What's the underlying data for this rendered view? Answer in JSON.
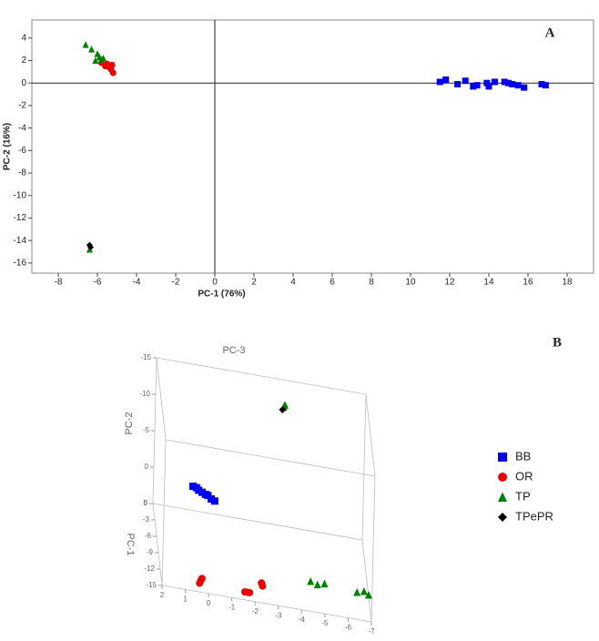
{
  "chart_data": [
    {
      "type": "scatter",
      "panel": "A",
      "x_label": "PC-1 (76%)",
      "y_label": "PC-2 (16%)",
      "xlim": [
        -9.35,
        19.35
      ],
      "ylim": [
        -16.9,
        5.6
      ],
      "xticks": [
        -8,
        -6,
        -4,
        -2,
        0,
        2,
        4,
        6,
        8,
        10,
        12,
        14,
        16,
        18
      ],
      "yticks": [
        -16,
        -14,
        -12,
        -10,
        -8,
        -6,
        -4,
        -2,
        0,
        2,
        4
      ],
      "zero_lines": true,
      "series": [
        {
          "color": "#0000ee",
          "marker": "square",
          "x": [
            11.5,
            11.8,
            12.4,
            12.8,
            13.2,
            13.4,
            13.9,
            14.0,
            14.3,
            14.8,
            15.0,
            15.2,
            15.5,
            15.8,
            16.7,
            16.9
          ],
          "y": [
            0.1,
            0.3,
            -0.1,
            0.2,
            -0.3,
            -0.2,
            0.0,
            -0.3,
            0.1,
            0.1,
            0.0,
            -0.1,
            -0.2,
            -0.4,
            -0.1,
            -0.2
          ]
        },
        {
          "color": "#ee0000",
          "marker": "circle",
          "x": [
            -5.8,
            -5.6,
            -5.5,
            -5.4,
            -5.3,
            -5.2,
            -5.25
          ],
          "y": [
            1.8,
            1.5,
            1.7,
            1.4,
            1.2,
            0.9,
            1.6
          ]
        },
        {
          "color": "#008000",
          "marker": "triangle",
          "x": [
            -6.6,
            -6.3,
            -6.0,
            -5.9,
            -5.8,
            -5.7,
            -6.1,
            -6.4
          ],
          "y": [
            3.4,
            3.0,
            2.6,
            2.3,
            2.1,
            2.2,
            2.0,
            -14.8
          ]
        },
        {
          "color": "#000000",
          "marker": "diamond",
          "x": [
            -6.4,
            -6.35
          ],
          "y": [
            -14.4,
            -14.6
          ]
        }
      ]
    },
    {
      "type": "scatter3d",
      "panel": "B",
      "x_label": "PC-1",
      "y_label": "PC-2",
      "z_label": "PC-3",
      "xlim": [
        0,
        -15
      ],
      "ylim": [
        -15,
        5
      ],
      "zlim": [
        2,
        -7
      ],
      "xticks": [
        0,
        -3,
        -6,
        -9,
        -12,
        -15
      ],
      "yticks": [
        -15,
        -10,
        -5,
        0,
        5
      ],
      "zticks": [
        2,
        1,
        0,
        -1,
        -2,
        -3,
        -4,
        -5,
        -6,
        -7
      ],
      "series": [
        {
          "name": "BB",
          "color": "#0000ee",
          "marker": "square",
          "x": [
            -4.5,
            -4.5,
            -4.5,
            -4.5,
            -4.5,
            -4.5,
            -4.5,
            -4.5
          ],
          "y": [
            -1.6,
            -1.5,
            -1.2,
            -1.0,
            -0.8,
            -0.7,
            -0.3,
            -0.1
          ],
          "z": [
            0.45,
            0.3,
            0.2,
            0.05,
            -0.1,
            -0.2,
            -0.35,
            -0.5
          ]
        },
        {
          "name": "OR",
          "color": "#ee0000",
          "marker": "circle",
          "x": [
            -13.5,
            -13.5,
            -13.5,
            -13.5,
            -13.5,
            -13.5,
            -13.5,
            -13.5
          ],
          "y": [
            4.9,
            4.5,
            4.2,
            5.0,
            5.0,
            5.0,
            3.4,
            3.8
          ],
          "z": [
            0.35,
            0.3,
            0.25,
            -1.6,
            -1.7,
            -1.8,
            -2.3,
            -2.35
          ]
        },
        {
          "name": "TP",
          "color": "#008000",
          "marker": "triangle",
          "x": [
            -3,
            -3,
            -13.5,
            -13.5,
            -13.5,
            -13.5,
            -13.5,
            -13.5
          ],
          "y": [
            -13.5,
            -13.8,
            2.0,
            2.3,
            2.0,
            2.4,
            2.1,
            2.5
          ],
          "z": [
            -3.4,
            -3.45,
            -4.4,
            -4.7,
            -5.0,
            -6.4,
            -6.7,
            -6.9
          ]
        },
        {
          "name": "TPePR",
          "color": "#000000",
          "marker": "diamond",
          "x": [
            -3
          ],
          "y": [
            -13.1
          ],
          "z": [
            -3.35
          ]
        }
      ]
    }
  ]
}
